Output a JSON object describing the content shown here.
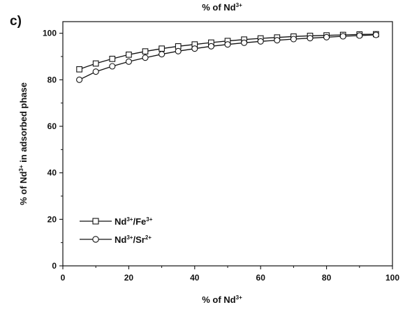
{
  "panel_label": "c)",
  "chart_data": {
    "type": "line",
    "title": {
      "main": "% of Nd",
      "sup": "3+"
    },
    "xlabel": {
      "main": "% of Nd",
      "sup": "3+"
    },
    "ylabel": {
      "pre": "% of Nd",
      "sup": "3+",
      "post": " in adsorbed phase"
    },
    "xlim": [
      0,
      100
    ],
    "ylim": [
      0,
      105
    ],
    "xticks": [
      0,
      20,
      40,
      60,
      80,
      100
    ],
    "yticks": [
      0,
      20,
      40,
      60,
      80,
      100
    ],
    "grid": false,
    "legend_position": "lower-left",
    "x": [
      5,
      10,
      15,
      20,
      25,
      30,
      35,
      40,
      45,
      50,
      55,
      60,
      65,
      70,
      75,
      80,
      85,
      90,
      95
    ],
    "series": [
      {
        "name": {
          "base": "Nd",
          "sup1": "3+",
          "mid": "/Fe",
          "sup2": "3+"
        },
        "marker": "square",
        "values": [
          84.5,
          87.0,
          89.0,
          90.8,
          92.2,
          93.4,
          94.4,
          95.2,
          96.0,
          96.7,
          97.3,
          97.8,
          98.2,
          98.6,
          98.9,
          99.1,
          99.3,
          99.5,
          99.6
        ]
      },
      {
        "name": {
          "base": "Nd",
          "sup1": "3+",
          "mid": "/Sr",
          "sup2": "2+"
        },
        "marker": "circle",
        "values": [
          80.0,
          83.5,
          85.8,
          87.8,
          89.5,
          91.0,
          92.3,
          93.4,
          94.4,
          95.2,
          95.9,
          96.5,
          97.0,
          97.5,
          97.9,
          98.3,
          98.7,
          99.0,
          99.3
        ]
      }
    ],
    "colors": {
      "line": "#111111",
      "marker_fill": "#ffffff"
    }
  }
}
